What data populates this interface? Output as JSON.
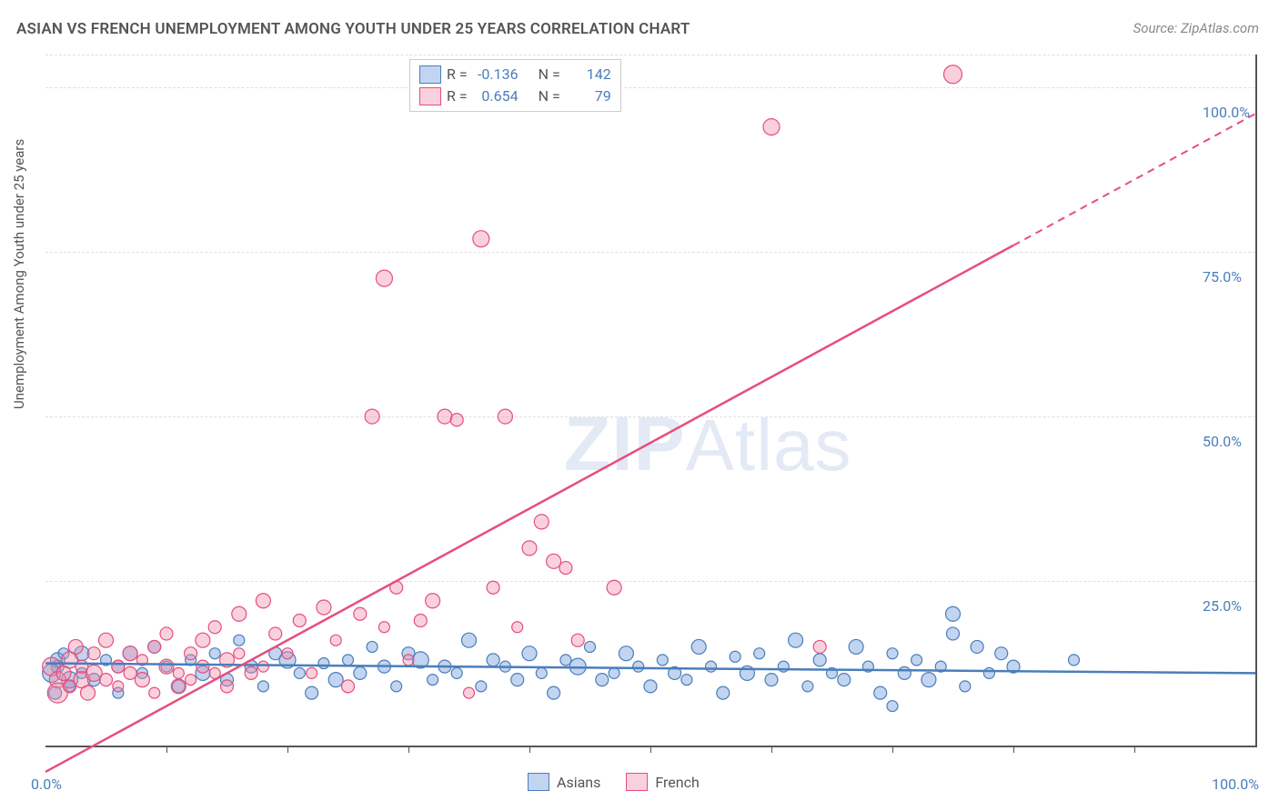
{
  "title": "ASIAN VS FRENCH UNEMPLOYMENT AMONG YOUTH UNDER 25 YEARS CORRELATION CHART",
  "source": "Source: ZipAtlas.com",
  "y_axis_label": "Unemployment Among Youth under 25 years",
  "watermark_zip": "ZIP",
  "watermark_atlas": "Atlas",
  "chart": {
    "type": "scatter-correlation",
    "xlim": [
      0,
      100
    ],
    "ylim": [
      0,
      105
    ],
    "x_ticks": [
      0,
      10,
      20,
      30,
      40,
      50,
      60,
      70,
      80,
      90,
      100
    ],
    "x_tick_labels": {
      "0": "0.0%",
      "100": "100.0%"
    },
    "y_ticks": [
      25,
      50,
      75,
      100
    ],
    "y_tick_labels": {
      "25": "25.0%",
      "50": "50.0%",
      "75": "75.0%",
      "100": "100.0%"
    },
    "grid_color": "#e8e8e8",
    "background_color": "#ffffff",
    "axis_color": "#555555",
    "value_color": "#4a7ebb",
    "series": [
      {
        "name": "Asians",
        "label": "Asians",
        "color_fill": "rgba(120,160,220,0.45)",
        "color_stroke": "#4a7ebb",
        "R": "-0.136",
        "N": "142",
        "trend": {
          "y0": 12.5,
          "y100": 11.0,
          "dash_from_x": null
        },
        "points": [
          [
            1,
            12,
            7
          ],
          [
            2,
            9,
            6
          ],
          [
            3,
            14,
            8
          ],
          [
            3,
            11,
            6
          ],
          [
            4,
            10,
            7
          ],
          [
            5,
            13,
            6
          ],
          [
            6,
            12,
            7
          ],
          [
            6,
            8,
            6
          ],
          [
            7,
            14,
            8
          ],
          [
            8,
            11,
            6
          ],
          [
            9,
            15,
            7
          ],
          [
            10,
            12,
            6
          ],
          [
            11,
            9,
            7
          ],
          [
            12,
            13,
            6
          ],
          [
            13,
            11,
            8
          ],
          [
            14,
            14,
            6
          ],
          [
            15,
            10,
            7
          ],
          [
            16,
            16,
            6
          ],
          [
            17,
            12,
            7
          ],
          [
            18,
            9,
            6
          ],
          [
            19,
            14,
            7
          ],
          [
            20,
            13,
            9
          ],
          [
            21,
            11,
            6
          ],
          [
            22,
            8,
            7
          ],
          [
            23,
            12.5,
            6
          ],
          [
            24,
            10,
            8
          ],
          [
            25,
            13,
            6
          ],
          [
            26,
            11,
            7
          ],
          [
            27,
            15,
            6
          ],
          [
            28,
            12,
            7
          ],
          [
            29,
            9,
            6
          ],
          [
            30,
            14,
            7
          ],
          [
            31,
            13,
            9
          ],
          [
            32,
            10,
            6
          ],
          [
            33,
            12,
            7
          ],
          [
            34,
            11,
            6
          ],
          [
            35,
            16,
            8
          ],
          [
            36,
            9,
            6
          ],
          [
            37,
            13,
            7
          ],
          [
            38,
            12,
            6
          ],
          [
            39,
            10,
            7
          ],
          [
            40,
            14,
            8
          ],
          [
            41,
            11,
            6
          ],
          [
            42,
            8,
            7
          ],
          [
            43,
            13,
            6
          ],
          [
            44,
            12,
            9
          ],
          [
            45,
            15,
            6
          ],
          [
            46,
            10,
            7
          ],
          [
            47,
            11,
            6
          ],
          [
            48,
            14,
            8
          ],
          [
            49,
            12,
            6
          ],
          [
            50,
            9,
            7
          ],
          [
            51,
            13,
            6
          ],
          [
            52,
            11,
            7
          ],
          [
            53,
            10,
            6
          ],
          [
            54,
            15,
            8
          ],
          [
            55,
            12,
            6
          ],
          [
            56,
            8,
            7
          ],
          [
            57,
            13.5,
            6
          ],
          [
            58,
            11,
            8
          ],
          [
            59,
            14,
            6
          ],
          [
            60,
            10,
            7
          ],
          [
            61,
            12,
            6
          ],
          [
            62,
            16,
            8
          ],
          [
            63,
            9,
            6
          ],
          [
            64,
            13,
            7
          ],
          [
            65,
            11,
            6
          ],
          [
            66,
            10,
            7
          ],
          [
            67,
            15,
            8
          ],
          [
            68,
            12,
            6
          ],
          [
            69,
            8,
            7
          ],
          [
            70,
            14,
            6
          ],
          [
            70,
            6,
            6
          ],
          [
            71,
            11,
            7
          ],
          [
            72,
            13,
            6
          ],
          [
            73,
            10,
            8
          ],
          [
            74,
            12,
            6
          ],
          [
            75,
            17,
            7
          ],
          [
            75,
            20,
            8
          ],
          [
            76,
            9,
            6
          ],
          [
            77,
            15,
            7
          ],
          [
            78,
            11,
            6
          ],
          [
            79,
            14,
            7
          ],
          [
            80,
            12,
            7
          ],
          [
            85,
            13,
            6
          ],
          [
            2,
            10,
            9
          ],
          [
            1,
            13,
            8
          ],
          [
            0.5,
            11,
            10
          ],
          [
            0.8,
            8,
            7
          ],
          [
            1.5,
            14,
            6
          ]
        ]
      },
      {
        "name": "French",
        "label": "French",
        "color_fill": "rgba(240,140,170,0.40)",
        "color_stroke": "#e64e7d",
        "R": "0.654",
        "N": "79",
        "trend": {
          "y0": -4,
          "y100": 96,
          "dash_from_x": 80
        },
        "points": [
          [
            0.5,
            12,
            10
          ],
          [
            1,
            10,
            9
          ],
          [
            1,
            8,
            11
          ],
          [
            1.5,
            11,
            8
          ],
          [
            2,
            13,
            9
          ],
          [
            2,
            9,
            7
          ],
          [
            2.5,
            15,
            8
          ],
          [
            3,
            10,
            9
          ],
          [
            3,
            12,
            7
          ],
          [
            3.5,
            8,
            8
          ],
          [
            4,
            14,
            7
          ],
          [
            4,
            11,
            9
          ],
          [
            5,
            10,
            7
          ],
          [
            5,
            16,
            8
          ],
          [
            6,
            12,
            7
          ],
          [
            6,
            9,
            6
          ],
          [
            7,
            14,
            8
          ],
          [
            7,
            11,
            7
          ],
          [
            8,
            10,
            8
          ],
          [
            8,
            13,
            6
          ],
          [
            9,
            15,
            7
          ],
          [
            9,
            8,
            6
          ],
          [
            10,
            12,
            8
          ],
          [
            10,
            17,
            7
          ],
          [
            11,
            11,
            6
          ],
          [
            11,
            9,
            8
          ],
          [
            12,
            14,
            7
          ],
          [
            12,
            10,
            6
          ],
          [
            13,
            16,
            8
          ],
          [
            13,
            12,
            7
          ],
          [
            14,
            18,
            7
          ],
          [
            14,
            11,
            6
          ],
          [
            15,
            13,
            8
          ],
          [
            15,
            9,
            7
          ],
          [
            16,
            20,
            8
          ],
          [
            16,
            14,
            6
          ],
          [
            17,
            11,
            7
          ],
          [
            18,
            22,
            8
          ],
          [
            18,
            12,
            6
          ],
          [
            19,
            17,
            7
          ],
          [
            20,
            14,
            6
          ],
          [
            21,
            19,
            7
          ],
          [
            22,
            11,
            6
          ],
          [
            23,
            21,
            8
          ],
          [
            24,
            16,
            6
          ],
          [
            25,
            9,
            7
          ],
          [
            26,
            20,
            7
          ],
          [
            27,
            50,
            8
          ],
          [
            28,
            71,
            9
          ],
          [
            28,
            18,
            6
          ],
          [
            29,
            24,
            7
          ],
          [
            30,
            13,
            6
          ],
          [
            31,
            19,
            7
          ],
          [
            32,
            22,
            8
          ],
          [
            33,
            50,
            8
          ],
          [
            34,
            49.5,
            7
          ],
          [
            35,
            8,
            6
          ],
          [
            36,
            77,
            9
          ],
          [
            37,
            24,
            7
          ],
          [
            38,
            50,
            8
          ],
          [
            39,
            18,
            6
          ],
          [
            40,
            30,
            8
          ],
          [
            41,
            34,
            8
          ],
          [
            42,
            28,
            8
          ],
          [
            43,
            27,
            7
          ],
          [
            44,
            16,
            7
          ],
          [
            47,
            24,
            8
          ],
          [
            60,
            94,
            9
          ],
          [
            64,
            15,
            7
          ],
          [
            75,
            102,
            10
          ]
        ]
      }
    ]
  },
  "legend_box": {
    "r_label": "R =",
    "n_label": "N ="
  },
  "bottom_legend": {
    "items": [
      "Asians",
      "French"
    ]
  }
}
